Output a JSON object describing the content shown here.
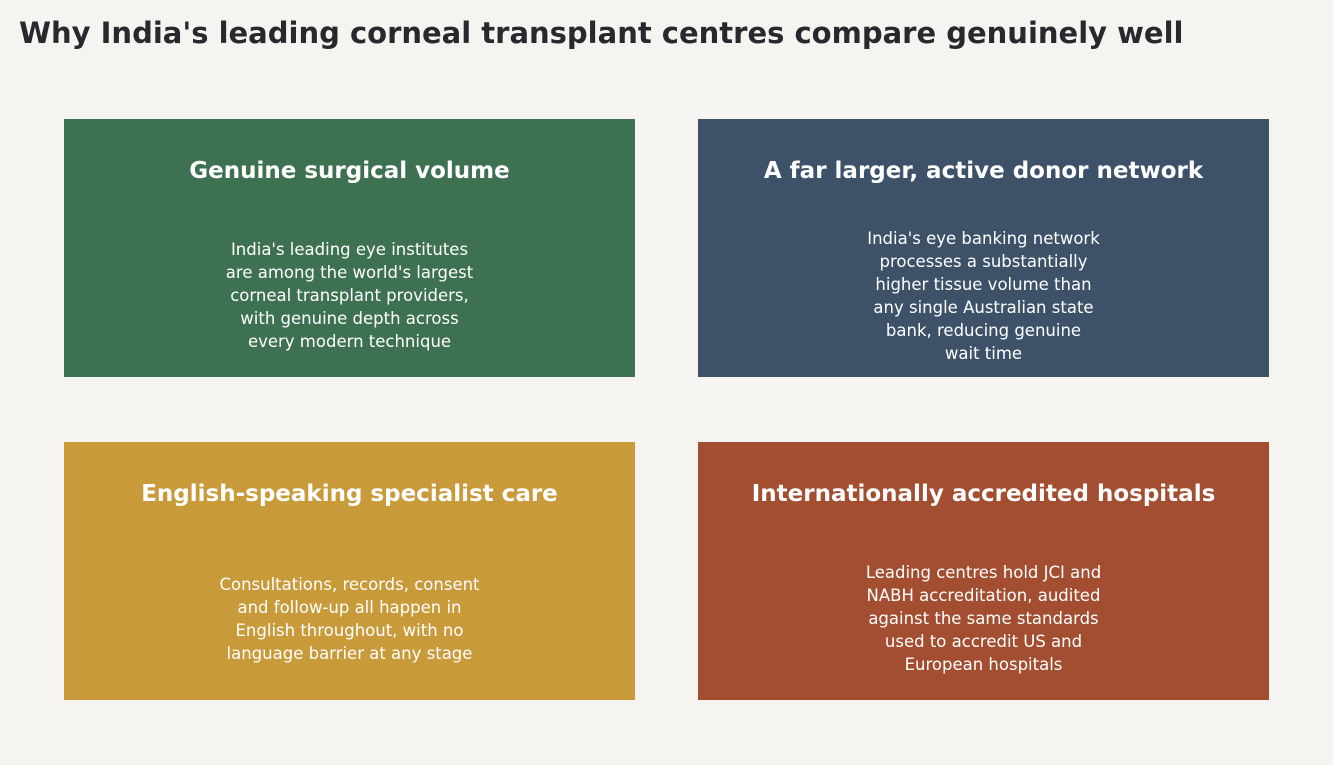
{
  "title": "Why India's leading corneal transplant centres compare genuinely well",
  "cards": [
    {
      "heading": "Genuine surgical volume",
      "text": "India's leading eye institutes\nare among the world's largest\ncorneal transplant providers,\nwith genuine depth across\nevery modern technique",
      "color": "#3e7152"
    },
    {
      "heading": "A far larger, active donor network",
      "text": "India's eye banking network\nprocesses a substantially\nhigher tissue volume than\nany single Australian state\nbank, reducing genuine\nwait time",
      "color": "#3d5269"
    },
    {
      "heading": "English-speaking specialist care",
      "text": "Consultations, records, consent\nand follow-up all happen in\nEnglish throughout, with no\nlanguage barrier at any stage",
      "color": "#c89a3a"
    },
    {
      "heading": "Internationally accredited hospitals",
      "text": "Leading centres hold JCI and\nNABH accreditation, audited\nagainst the same standards\nused to accredit US and\nEuropean hospitals",
      "color": "#a34e30"
    }
  ]
}
